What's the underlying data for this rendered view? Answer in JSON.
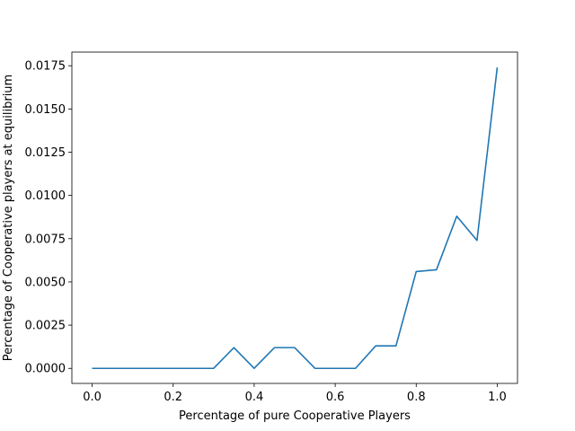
{
  "chart_data": {
    "type": "line",
    "title": "",
    "xlabel": "Percentage of pure Cooperative Players",
    "ylabel": "Percentage of Cooperative players at equilibrium",
    "xlim": [
      -0.05,
      1.05
    ],
    "ylim": [
      -0.00087,
      0.01829
    ],
    "x_ticks": [
      0.0,
      0.2,
      0.4,
      0.6,
      0.8,
      1.0
    ],
    "x_tick_labels": [
      "0.0",
      "0.2",
      "0.4",
      "0.6",
      "0.8",
      "1.0"
    ],
    "y_ticks": [
      0.0,
      0.0025,
      0.005,
      0.0075,
      0.01,
      0.0125,
      0.015,
      0.0175
    ],
    "y_tick_labels": [
      "0.0000",
      "0.0025",
      "0.0050",
      "0.0075",
      "0.0100",
      "0.0125",
      "0.0150",
      "0.0175"
    ],
    "grid": false,
    "series": [
      {
        "color": "#1f77b4",
        "x": [
          0.0,
          0.05,
          0.1,
          0.15,
          0.2,
          0.25,
          0.3,
          0.35,
          0.4,
          0.45,
          0.5,
          0.55,
          0.6,
          0.65,
          0.7,
          0.75,
          0.8,
          0.85,
          0.9,
          0.95,
          1.0
        ],
        "y": [
          0.0,
          0.0,
          0.0,
          0.0,
          0.0,
          0.0,
          0.0,
          0.0012,
          0.0,
          0.0012,
          0.0012,
          0.0,
          0.0,
          0.0,
          0.0013,
          0.0013,
          0.0056,
          0.0057,
          0.0088,
          0.0074,
          0.0174
        ]
      }
    ]
  }
}
